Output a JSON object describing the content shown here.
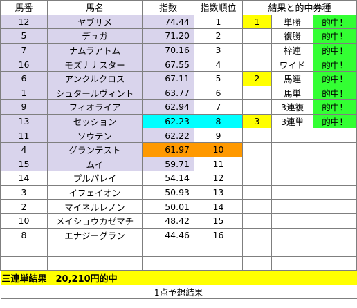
{
  "headers": [
    "馬番",
    "馬名",
    "指数",
    "指数順位",
    "結果と的中券種"
  ],
  "horses": [
    {
      "no": "12",
      "name": "ヤブサメ",
      "index": "74.44",
      "rank": "1",
      "hl": "lav"
    },
    {
      "no": "5",
      "name": "デュガ",
      "index": "71.20",
      "rank": "2",
      "hl": "lav"
    },
    {
      "no": "7",
      "name": "ナムラアトム",
      "index": "70.16",
      "rank": "3",
      "hl": "lav"
    },
    {
      "no": "16",
      "name": "モズナナスター",
      "index": "67.55",
      "rank": "4",
      "hl": "lav"
    },
    {
      "no": "6",
      "name": "アンクルクロス",
      "index": "67.11",
      "rank": "5",
      "hl": "lav"
    },
    {
      "no": "1",
      "name": "シュタールヴィント",
      "index": "63.77",
      "rank": "6",
      "hl": "lav"
    },
    {
      "no": "9",
      "name": "フィオライア",
      "index": "62.94",
      "rank": "7",
      "hl": "lav"
    },
    {
      "no": "13",
      "name": "セッション",
      "index": "62.23",
      "rank": "8",
      "hl": "cyan"
    },
    {
      "no": "11",
      "name": "ソウテン",
      "index": "62.22",
      "rank": "9",
      "hl": "lav"
    },
    {
      "no": "4",
      "name": "グランテスト",
      "index": "61.97",
      "rank": "10",
      "hl": "orange"
    },
    {
      "no": "15",
      "name": "ムイ",
      "index": "59.71",
      "rank": "11",
      "hl": "lav"
    },
    {
      "no": "14",
      "name": "プルパレイ",
      "index": "54.14",
      "rank": "12",
      "hl": "none"
    },
    {
      "no": "3",
      "name": "イフェイオン",
      "index": "50.93",
      "rank": "13",
      "hl": "none"
    },
    {
      "no": "2",
      "name": "マイネルレノン",
      "index": "50.01",
      "rank": "14",
      "hl": "none"
    },
    {
      "no": "10",
      "name": "メイショウカゼマチ",
      "index": "48.42",
      "rank": "15",
      "hl": "none"
    },
    {
      "no": "8",
      "name": "エナジーグラン",
      "index": "44.46",
      "rank": "16",
      "hl": "none"
    }
  ],
  "results": [
    {
      "place": "1",
      "type": "単勝",
      "hit": "的中！"
    },
    {
      "place": "",
      "type": "複勝",
      "hit": "的中！"
    },
    {
      "place": "",
      "type": "枠連",
      "hit": "的中！"
    },
    {
      "place": "",
      "type": "ワイド",
      "hit": "的中！"
    },
    {
      "place": "2",
      "type": "馬連",
      "hit": "的中！"
    },
    {
      "place": "",
      "type": "馬単",
      "hit": "的中！"
    },
    {
      "place": "",
      "type": "3連複",
      "hit": "的中！"
    },
    {
      "place": "3",
      "type": "3連単",
      "hit": "的中！"
    }
  ],
  "empty_rows": 2,
  "summary": "三連単結果　20,210円的中",
  "footer": "1点予想結果",
  "colors": {
    "lavender": "#d9d4ec",
    "cyan": "#00ffff",
    "orange": "#ff9900",
    "yellow": "#ffff00",
    "green": "#33ff33"
  }
}
